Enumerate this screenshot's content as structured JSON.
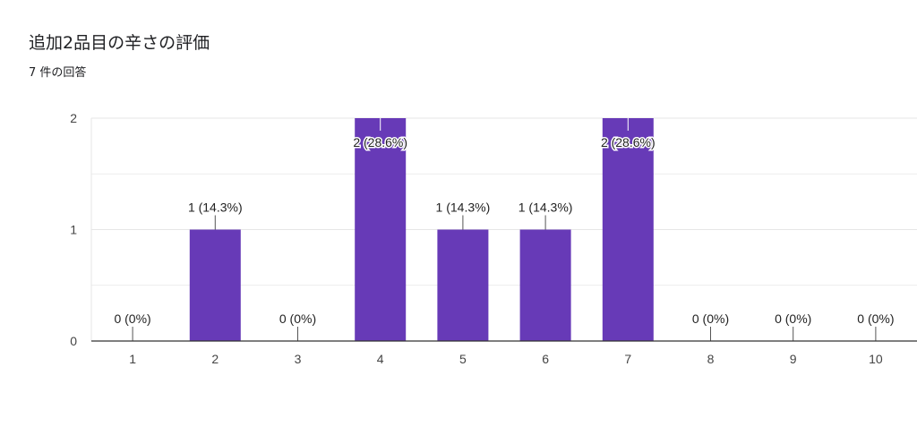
{
  "header": {
    "title": "追加2品目の辛さの評価",
    "subtitle": "7 件の回答"
  },
  "colors": {
    "bar": "#673ab7",
    "gridline": "#e6e6e6",
    "axis": "#333333",
    "text": "#202124"
  },
  "chart_data": {
    "type": "bar",
    "categories": [
      "1",
      "2",
      "3",
      "4",
      "5",
      "6",
      "7",
      "8",
      "9",
      "10"
    ],
    "values": [
      0,
      1,
      0,
      2,
      1,
      1,
      2,
      0,
      0,
      0
    ],
    "data_labels": [
      "0 (0%)",
      "1 (14.3%)",
      "0 (0%)",
      "2 (28.6%)",
      "1 (14.3%)",
      "1 (14.3%)",
      "2 (28.6%)",
      "0 (0%)",
      "0 (0%)",
      "0 (0%)"
    ],
    "yticks": [
      "0",
      "1",
      "2"
    ],
    "ylim": [
      0,
      2
    ],
    "grid": true,
    "legend": "none"
  }
}
